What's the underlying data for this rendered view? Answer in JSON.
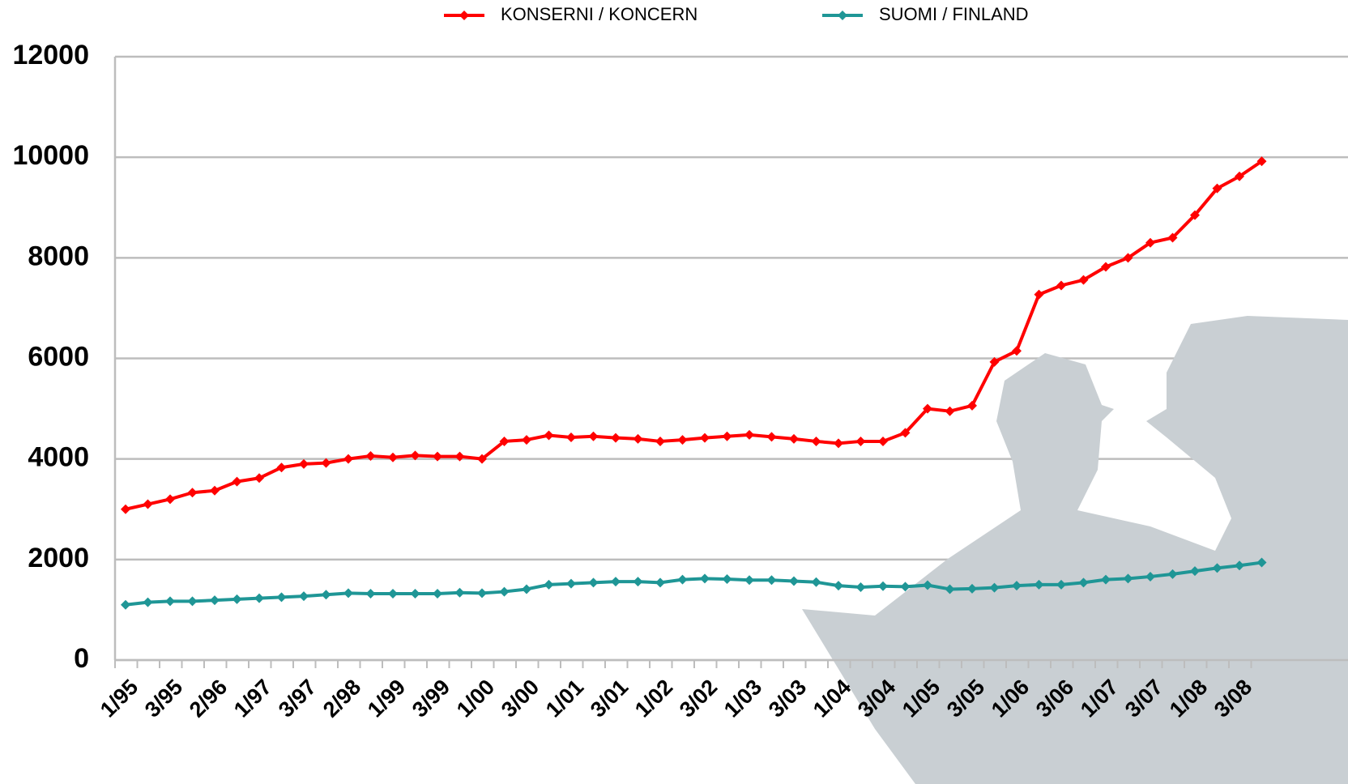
{
  "chart_data": {
    "type": "line",
    "categories": [
      "1/95",
      null,
      "3/95",
      null,
      "2/96",
      null,
      "1/97",
      null,
      "3/97",
      null,
      "2/98",
      null,
      "1/99",
      null,
      "3/99",
      null,
      "1/00",
      null,
      "3/00",
      null,
      "1/01",
      null,
      "3/01",
      null,
      "1/02",
      null,
      "3/02",
      null,
      "1/03",
      null,
      "3/03",
      null,
      "1/04",
      null,
      "3/04",
      null,
      "1/05",
      null,
      "3/05",
      null,
      "1/06",
      null,
      "3/06",
      null,
      "1/07",
      null,
      "3/07",
      null,
      "1/08",
      null,
      "3/08",
      null
    ],
    "series": [
      {
        "name": "KONSERNI / KONCERN",
        "color": "#ff0000",
        "values": [
          3000,
          3100,
          3200,
          3330,
          3370,
          3550,
          3620,
          3830,
          3900,
          3920,
          4000,
          4060,
          4030,
          4070,
          4050,
          4050,
          4000,
          4350,
          4380,
          4470,
          4430,
          4450,
          4420,
          4400,
          4350,
          4380,
          4420,
          4450,
          4480,
          4440,
          4400,
          4350,
          4310,
          4350,
          4350,
          4520,
          5000,
          4950,
          5060,
          5930,
          6150,
          7270,
          7450,
          7560,
          7820,
          8000,
          8300,
          8400,
          8850,
          9380,
          9620,
          9920
        ]
      },
      {
        "name": "SUOMI / FINLAND",
        "color": "#1f9696",
        "values": [
          1100,
          1150,
          1170,
          1170,
          1190,
          1210,
          1230,
          1250,
          1270,
          1300,
          1330,
          1320,
          1320,
          1320,
          1320,
          1340,
          1330,
          1360,
          1410,
          1500,
          1520,
          1540,
          1560,
          1560,
          1540,
          1600,
          1620,
          1610,
          1590,
          1590,
          1570,
          1550,
          1480,
          1450,
          1470,
          1460,
          1490,
          1410,
          1420,
          1440,
          1480,
          1500,
          1500,
          1540,
          1600,
          1620,
          1660,
          1710,
          1770,
          1830,
          1880,
          1940
        ]
      }
    ],
    "ylim": [
      0,
      12000
    ],
    "yticks": [
      0,
      2000,
      4000,
      6000,
      8000,
      10000,
      12000
    ],
    "grid": true
  }
}
